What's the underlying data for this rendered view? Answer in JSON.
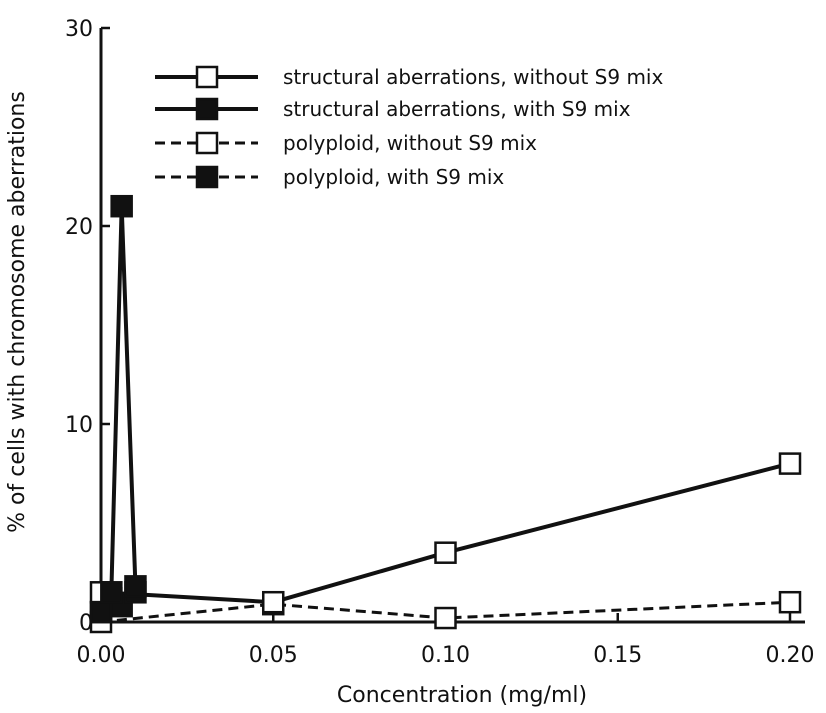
{
  "chart_data": {
    "type": "line",
    "xlabel": "Concentration (mg/ml)",
    "ylabel": "% of cells with chromosome aberrations",
    "xlim": [
      0,
      0.2
    ],
    "ylim": [
      0,
      30
    ],
    "x_ticks": [
      "0.00",
      "0.05",
      "0.10",
      "0.15",
      "0.20"
    ],
    "x_tick_values": [
      0,
      0.05,
      0.1,
      0.15,
      0.2
    ],
    "y_ticks": [
      "0",
      "10",
      "20",
      "30"
    ],
    "y_tick_values": [
      0,
      10,
      20,
      30
    ],
    "grid": false,
    "legend_position": "top-left",
    "series": [
      {
        "name": "structural aberrations, without S9 mix",
        "line": "solid",
        "marker": "open-square",
        "x": [
          0,
          0.05,
          0.1,
          0.2
        ],
        "y": [
          1.5,
          1.0,
          3.5,
          8.0
        ]
      },
      {
        "name": "structural aberrations, with S9 mix",
        "line": "solid",
        "marker": "filled-square",
        "x": [
          0,
          0.003,
          0.006,
          0.01
        ],
        "y": [
          0.5,
          1.5,
          21.0,
          1.8
        ]
      },
      {
        "name": "polyploid, without S9 mix",
        "line": "dashed",
        "marker": "open-square",
        "x": [
          0,
          0.05,
          0.1,
          0.2
        ],
        "y": [
          0.0,
          0.9,
          0.2,
          1.0
        ]
      },
      {
        "name": "polyploid, with S9 mix",
        "line": "dashed",
        "marker": "filled-square",
        "x": [
          0,
          0.003,
          0.006,
          0.01
        ],
        "y": [
          0.5,
          1.2,
          0.8,
          1.5
        ]
      }
    ]
  }
}
